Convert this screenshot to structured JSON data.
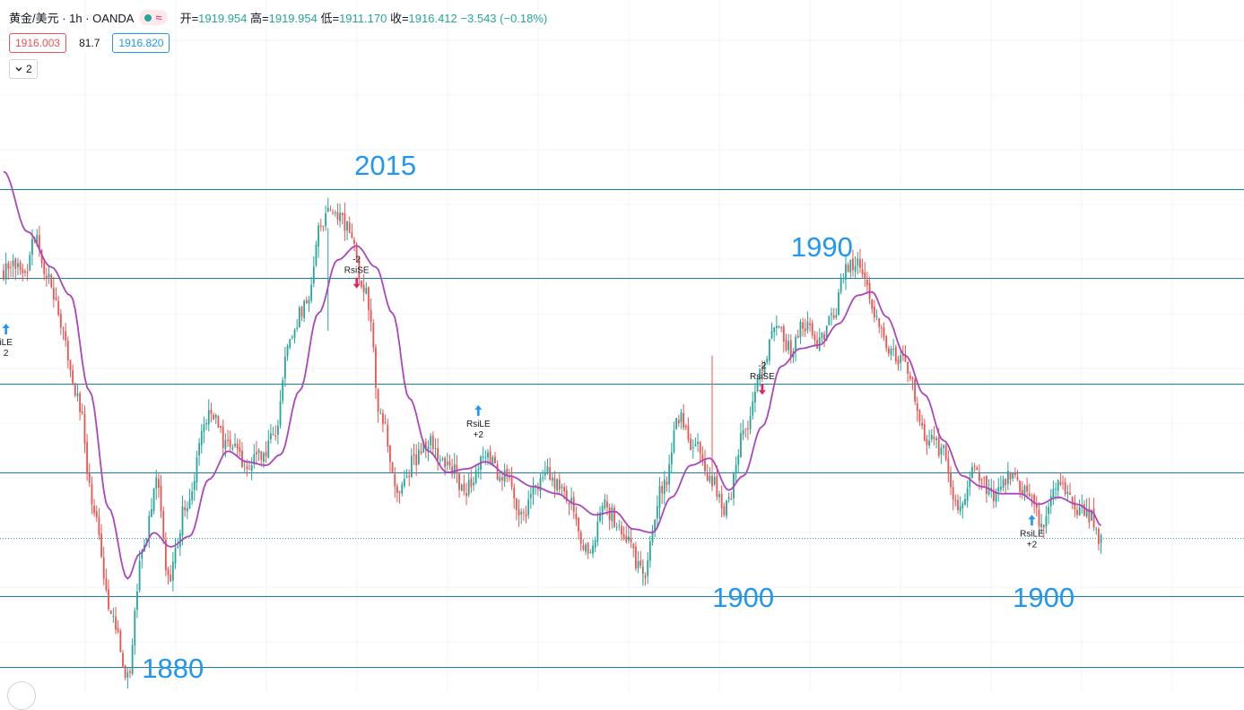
{
  "header": {
    "symbol": "黄金/美元 · 1h · OANDA",
    "ohlc": [
      {
        "label": "开=",
        "value": "1919.954"
      },
      {
        "label": "高=",
        "value": "1919.954"
      },
      {
        "label": "低=",
        "value": "1911.170"
      },
      {
        "label": "收=",
        "value": "1916.412"
      }
    ],
    "change": "−3.543 (−0.18%)",
    "wave_glyph": "≈"
  },
  "badges": {
    "bid": "1916.003",
    "spread": "81.7",
    "ask": "1916.820"
  },
  "indicator_toggle": {
    "count": "2",
    "icon": "chevron-down-icon"
  },
  "colors": {
    "up": "#26a69a",
    "down": "#ef5350",
    "ma": "#ab47bc",
    "level_line": "#1a7fa8",
    "annotation": "#2196f3"
  },
  "chart_data": {
    "type": "candlestick",
    "symbol": "XAU/USD",
    "interval": "1h",
    "ylim": [
      1870,
      2035
    ],
    "levels": [
      2015,
      1990,
      1960,
      1935,
      1900,
      1880
    ],
    "last_price": 1916.41,
    "keypoints": [
      {
        "i": 0,
        "p": 1992
      },
      {
        "i": 9,
        "p": 1993
      },
      {
        "i": 14,
        "p": 2002
      },
      {
        "i": 18,
        "p": 1991
      },
      {
        "i": 24,
        "p": 1978
      },
      {
        "i": 31,
        "p": 1955
      },
      {
        "i": 38,
        "p": 1925
      },
      {
        "i": 45,
        "p": 1895
      },
      {
        "i": 52,
        "p": 1878
      },
      {
        "i": 58,
        "p": 1912
      },
      {
        "i": 64,
        "p": 1932
      },
      {
        "i": 69,
        "p": 1905
      },
      {
        "i": 77,
        "p": 1927
      },
      {
        "i": 86,
        "p": 1952
      },
      {
        "i": 94,
        "p": 1943
      },
      {
        "i": 101,
        "p": 1938
      },
      {
        "i": 108,
        "p": 1940
      },
      {
        "i": 114,
        "p": 1947
      },
      {
        "i": 120,
        "p": 1975
      },
      {
        "i": 127,
        "p": 1983
      },
      {
        "i": 133,
        "p": 2006
      },
      {
        "i": 139,
        "p": 2009
      },
      {
        "i": 145,
        "p": 2003
      },
      {
        "i": 152,
        "p": 1985
      },
      {
        "i": 158,
        "p": 1952
      },
      {
        "i": 165,
        "p": 1928
      },
      {
        "i": 172,
        "p": 1938
      },
      {
        "i": 179,
        "p": 1943
      },
      {
        "i": 186,
        "p": 1938
      },
      {
        "i": 193,
        "p": 1930
      },
      {
        "i": 202,
        "p": 1940
      },
      {
        "i": 209,
        "p": 1934
      },
      {
        "i": 218,
        "p": 1924
      },
      {
        "i": 227,
        "p": 1935
      },
      {
        "i": 236,
        "p": 1928
      },
      {
        "i": 245,
        "p": 1912
      },
      {
        "i": 252,
        "p": 1925
      },
      {
        "i": 261,
        "p": 1917
      },
      {
        "i": 268,
        "p": 1906
      },
      {
        "i": 276,
        "p": 1930
      },
      {
        "i": 283,
        "p": 1950
      },
      {
        "i": 290,
        "p": 1942
      },
      {
        "i": 297,
        "p": 1932
      },
      {
        "i": 303,
        "p": 1925
      },
      {
        "i": 310,
        "p": 1945
      },
      {
        "i": 317,
        "p": 1962
      },
      {
        "i": 323,
        "p": 1977
      },
      {
        "i": 330,
        "p": 1970
      },
      {
        "i": 336,
        "p": 1977
      },
      {
        "i": 341,
        "p": 1972
      },
      {
        "i": 347,
        "p": 1978
      },
      {
        "i": 353,
        "p": 1993
      },
      {
        "i": 359,
        "p": 1994
      },
      {
        "i": 365,
        "p": 1980
      },
      {
        "i": 372,
        "p": 1968
      },
      {
        "i": 379,
        "p": 1965
      },
      {
        "i": 386,
        "p": 1945
      },
      {
        "i": 393,
        "p": 1942
      },
      {
        "i": 400,
        "p": 1926
      },
      {
        "i": 407,
        "p": 1935
      },
      {
        "i": 414,
        "p": 1929
      },
      {
        "i": 421,
        "p": 1933
      },
      {
        "i": 428,
        "p": 1930
      },
      {
        "i": 435,
        "p": 1921
      },
      {
        "i": 442,
        "p": 1932
      },
      {
        "i": 449,
        "p": 1925
      },
      {
        "i": 456,
        "p": 1922
      },
      {
        "i": 460,
        "p": 1915
      }
    ],
    "ma_points": [
      {
        "i": 0,
        "p": 2020
      },
      {
        "i": 10,
        "p": 2003
      },
      {
        "i": 20,
        "p": 1993
      },
      {
        "i": 28,
        "p": 1985
      },
      {
        "i": 36,
        "p": 1958
      },
      {
        "i": 44,
        "p": 1925
      },
      {
        "i": 52,
        "p": 1905
      },
      {
        "i": 57,
        "p": 1912
      },
      {
        "i": 63,
        "p": 1918
      },
      {
        "i": 70,
        "p": 1914
      },
      {
        "i": 78,
        "p": 1917
      },
      {
        "i": 86,
        "p": 1933
      },
      {
        "i": 94,
        "p": 1941
      },
      {
        "i": 102,
        "p": 1938
      },
      {
        "i": 110,
        "p": 1937
      },
      {
        "i": 116,
        "p": 1940
      },
      {
        "i": 124,
        "p": 1958
      },
      {
        "i": 132,
        "p": 1980
      },
      {
        "i": 140,
        "p": 1995
      },
      {
        "i": 148,
        "p": 1999
      },
      {
        "i": 156,
        "p": 1993
      },
      {
        "i": 163,
        "p": 1980
      },
      {
        "i": 170,
        "p": 1956
      },
      {
        "i": 178,
        "p": 1941
      },
      {
        "i": 186,
        "p": 1935
      },
      {
        "i": 194,
        "p": 1936
      },
      {
        "i": 202,
        "p": 1938
      },
      {
        "i": 212,
        "p": 1934
      },
      {
        "i": 222,
        "p": 1931
      },
      {
        "i": 232,
        "p": 1929
      },
      {
        "i": 240,
        "p": 1926
      },
      {
        "i": 248,
        "p": 1923
      },
      {
        "i": 256,
        "p": 1924
      },
      {
        "i": 264,
        "p": 1919
      },
      {
        "i": 272,
        "p": 1918
      },
      {
        "i": 280,
        "p": 1928
      },
      {
        "i": 288,
        "p": 1937
      },
      {
        "i": 296,
        "p": 1939
      },
      {
        "i": 304,
        "p": 1930
      },
      {
        "i": 310,
        "p": 1934
      },
      {
        "i": 318,
        "p": 1948
      },
      {
        "i": 326,
        "p": 1965
      },
      {
        "i": 334,
        "p": 1970
      },
      {
        "i": 342,
        "p": 1971
      },
      {
        "i": 350,
        "p": 1977
      },
      {
        "i": 358,
        "p": 1985
      },
      {
        "i": 364,
        "p": 1986
      },
      {
        "i": 370,
        "p": 1979
      },
      {
        "i": 378,
        "p": 1968
      },
      {
        "i": 386,
        "p": 1957
      },
      {
        "i": 394,
        "p": 1944
      },
      {
        "i": 402,
        "p": 1934
      },
      {
        "i": 410,
        "p": 1931
      },
      {
        "i": 418,
        "p": 1929
      },
      {
        "i": 426,
        "p": 1929
      },
      {
        "i": 434,
        "p": 1926
      },
      {
        "i": 442,
        "p": 1928
      },
      {
        "i": 450,
        "p": 1926
      },
      {
        "i": 456,
        "p": 1924
      },
      {
        "i": 460,
        "p": 1920
      }
    ],
    "price_annotations": [
      {
        "text": "2015",
        "i": 160,
        "p": 2019,
        "align": "center"
      },
      {
        "text": "1990",
        "i": 343,
        "p": 1996,
        "align": "center"
      },
      {
        "text": "1900",
        "i": 310,
        "p": 1897,
        "align": "center"
      },
      {
        "text": "1900",
        "i": 423,
        "p": 1897,
        "align": "left"
      },
      {
        "text": "1880",
        "i": 58,
        "p": 1877,
        "align": "left"
      }
    ],
    "signals": [
      {
        "type": "buy",
        "i": 1,
        "p": 1975,
        "text": "iLE",
        "qty": "2"
      },
      {
        "type": "sell",
        "i": 148,
        "p": 1989,
        "text": "RsiSE",
        "qty": "-2"
      },
      {
        "type": "buy",
        "i": 199,
        "p": 1952,
        "text": "RsiLE",
        "qty": "+2"
      },
      {
        "type": "sell",
        "i": 318,
        "p": 1959,
        "text": "RsiSE",
        "qty": "-2"
      },
      {
        "type": "buy",
        "i": 431,
        "p": 1921,
        "text": "RsiLE",
        "qty": "+2"
      }
    ]
  }
}
